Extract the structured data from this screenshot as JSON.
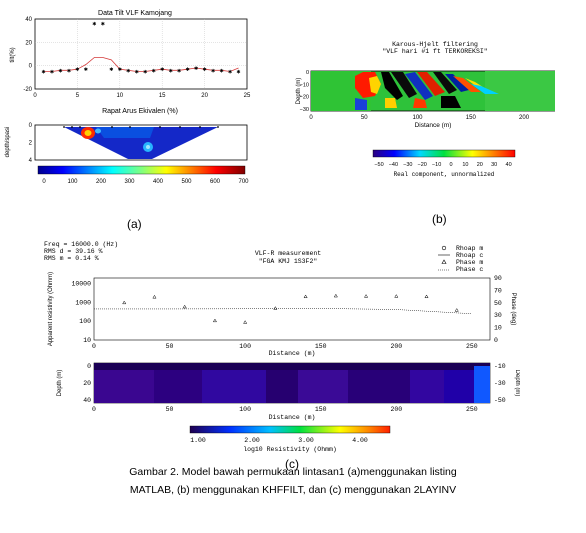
{
  "figure_a": {
    "label": "(a)",
    "top_title": "Data Tilt VLF Kamojang",
    "top_ylabel": "tilt(%)",
    "bottom_title": "Rapat Arus Ekivalen (%)",
    "bottom_ylabel": "depth/spasi",
    "cbar_ticks": [
      "0",
      "100",
      "200",
      "300",
      "400",
      "500",
      "600",
      "700"
    ]
  },
  "figure_b": {
    "label": "(b)",
    "title1": "Karous-Hjelt filtering",
    "title2": "\"VLF hari #1 ft TERKOREKSI\"",
    "xlabel": "Distance (m)",
    "ylabel": "Depth (m)",
    "cbar_ticks": [
      "−50",
      "−40",
      "−30",
      "−20",
      "−10",
      "0",
      "10",
      "20",
      "30",
      "40"
    ],
    "cbar_label": "Real component, unnormalized"
  },
  "figure_c": {
    "label": "(c)",
    "header": [
      "Freq = 16000.0 (Hz)",
      "RMS d = 39.16 %",
      "RMS m = 0.14 %"
    ],
    "title1": "VLF-R measurement",
    "title2": "\"FGA KMJ 1S3F2\"",
    "legend": [
      "Rhoap m",
      "Rhoap c",
      "Phase m",
      "Phase c"
    ],
    "top_ylabel": "Apparent resistivity (Ohmm)",
    "top_ylabel_right": "Phase (deg)",
    "xlabel": "Distance (m)",
    "depth_label": "Depth (m)",
    "cbar_ticks": [
      "1.00",
      "2.00",
      "3.00",
      "4.00"
    ],
    "cbar_label": "log10 Resistivity (Ohmm)"
  },
  "caption": {
    "line1": "Gambar 2. Model bawah permukaan lintasan1 (a)menggunakan listing",
    "line2": "MATLAB, (b) menggunakan KHFFILT, dan (c) menggunakan 2LAYINV"
  },
  "chart_data": [
    {
      "type": "line",
      "title": "Data Tilt VLF Kamojang",
      "ylabel": "tilt(%)",
      "xlim": [
        0,
        25
      ],
      "ylim": [
        -20,
        40
      ],
      "x_ticks": [
        "0",
        "5",
        "10",
        "15",
        "20",
        "25"
      ],
      "y_ticks": [
        "-20",
        "0",
        "20",
        "40"
      ],
      "series": [
        {
          "x": [
            1,
            2,
            3,
            4,
            5,
            6,
            7,
            8,
            9,
            10,
            11,
            12,
            13,
            14,
            15,
            16,
            17,
            18,
            19,
            20,
            21,
            22,
            23,
            24
          ],
          "values": [
            -5,
            -5,
            -4,
            -4,
            -3,
            -3,
            36,
            36,
            -3,
            -3,
            -4,
            -5,
            -5,
            -4,
            -3,
            -4,
            -4,
            -3,
            -2,
            -3,
            -4,
            -4,
            -5,
            -5
          ]
        },
        {
          "x": [
            1,
            2,
            3,
            4,
            5,
            6,
            7,
            8,
            9,
            10,
            11,
            12,
            13,
            14,
            15,
            16,
            17,
            18,
            19,
            20,
            21,
            22,
            23,
            24
          ],
          "values": [
            -5,
            -5,
            -4,
            -4,
            -3,
            1,
            7,
            7,
            5,
            -3,
            -4,
            -5,
            -5,
            -4,
            -3,
            -4,
            -4,
            -3,
            -2,
            -3,
            -4,
            -4,
            -5,
            -2
          ]
        }
      ]
    },
    {
      "type": "heatmap",
      "title": "Rapat Arus Ekivalen (%)",
      "ylabel": "depth/spasi",
      "xlim": [
        0,
        25
      ],
      "ylim": [
        4,
        0
      ],
      "x_ticks": [
        "0",
        "5",
        "10",
        "15",
        "20",
        "25"
      ],
      "y_ticks": [
        "0",
        "2",
        "4"
      ],
      "colorbar": [
        0,
        700
      ]
    },
    {
      "type": "heatmap",
      "title": "Karous-Hjelt filtering",
      "xlabel": "Distance (m)",
      "ylabel": "Depth (m)",
      "x_ticks": [
        "0",
        "50",
        "100",
        "150",
        "200"
      ],
      "y_ticks": [
        "0",
        "−10",
        "−20",
        "−30"
      ],
      "colorbar": [
        -50,
        40
      ]
    },
    {
      "type": "scatter",
      "title": "VLF-R measurement",
      "xlabel": "Distance (m)",
      "ylabel": "Apparent resistivity (Ohmm)",
      "x_ticks": [
        "0",
        "50",
        "100",
        "150",
        "200",
        "250"
      ],
      "y_ticks": [
        "10",
        "100",
        "1000",
        "10000"
      ],
      "y2_ticks": [
        "0",
        "10",
        "30",
        "50",
        "70",
        "90"
      ],
      "series": [
        {
          "name": "Phase m",
          "x": [
            20,
            40,
            60,
            80,
            100,
            120,
            140,
            160,
            180,
            200,
            220,
            240
          ],
          "values": [
            1000,
            2000,
            600,
            110,
            90,
            500,
            2100,
            2300,
            2200,
            2200,
            2100,
            400
          ]
        },
        {
          "name": "Rhoap c",
          "x": [
            0,
            50,
            100,
            150,
            200,
            250
          ],
          "values": [
            450,
            450,
            460,
            480,
            420,
            250
          ]
        }
      ]
    },
    {
      "type": "heatmap",
      "title": "",
      "xlabel": "Distance (m)",
      "ylabel": "Depth (m)",
      "x_ticks": [
        "0",
        "50",
        "100",
        "150",
        "200",
        "250"
      ],
      "y_ticks": [
        "0",
        "−20",
        "−40"
      ],
      "colorbar": [
        1.0,
        4.0
      ]
    }
  ]
}
